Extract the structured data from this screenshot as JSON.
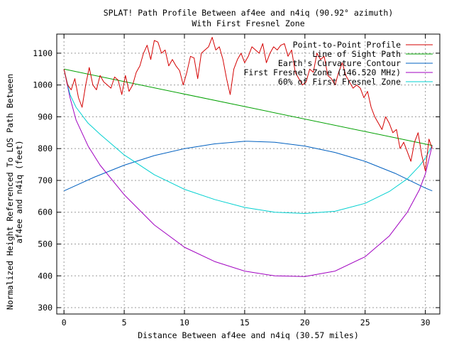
{
  "chart_data": {
    "type": "line",
    "title": "SPLAT! Path Profile Between af4ee and n4iq (90.92° azimuth)",
    "subtitle": "With First Fresnel Zone",
    "xlabel": "Distance Between af4ee and n4iq (30.57 miles)",
    "ylabel": "Normalized Height Referenced To LOS Path Between af4ee and n4iq (feet)",
    "ylabel_lines": [
      "Normalized Height Referenced To LOS Path Between",
      "af4ee and n4iq (feet)"
    ],
    "xlim": [
      -0.6,
      31.2
    ],
    "ylim": [
      280,
      1160
    ],
    "x_ticks": [
      0,
      5,
      10,
      15,
      20,
      25,
      30
    ],
    "y_ticks": [
      300,
      400,
      500,
      600,
      700,
      800,
      900,
      1000,
      1100
    ],
    "grid": true,
    "legend_position": "top-right",
    "colors": {
      "profile": "#d40000",
      "los": "#00a000",
      "curvature": "#0060c0",
      "fresnel": "#a000c0",
      "fresnel60": "#00d0d0",
      "grid": "#9a9a9a",
      "axis": "#000000"
    },
    "series": [
      {
        "name": "Point-to-Point Profile",
        "key": "profile",
        "x": [
          0,
          0.3,
          0.6,
          0.9,
          1.2,
          1.5,
          1.8,
          2.1,
          2.4,
          2.7,
          3.0,
          3.3,
          3.6,
          3.9,
          4.2,
          4.5,
          4.8,
          5.1,
          5.4,
          5.7,
          6.0,
          6.3,
          6.6,
          6.9,
          7.2,
          7.5,
          7.8,
          8.1,
          8.4,
          8.7,
          9.0,
          9.3,
          9.6,
          9.9,
          10.2,
          10.5,
          10.8,
          11.1,
          11.4,
          11.7,
          12.0,
          12.3,
          12.6,
          12.9,
          13.2,
          13.5,
          13.8,
          14.1,
          14.4,
          14.7,
          15.0,
          15.3,
          15.6,
          15.9,
          16.2,
          16.5,
          16.8,
          17.1,
          17.4,
          17.7,
          18.0,
          18.3,
          18.6,
          18.9,
          19.2,
          19.5,
          19.8,
          20.1,
          20.4,
          20.7,
          21.0,
          21.3,
          21.6,
          21.9,
          22.2,
          22.5,
          22.8,
          23.1,
          23.4,
          23.7,
          24.0,
          24.3,
          24.6,
          24.9,
          25.2,
          25.5,
          25.8,
          26.1,
          26.4,
          26.7,
          27.0,
          27.3,
          27.6,
          27.9,
          28.2,
          28.5,
          28.8,
          29.1,
          29.4,
          29.7,
          30.0,
          30.3,
          30.57
        ],
        "values": [
          1050,
          1000,
          985,
          1020,
          960,
          930,
          1000,
          1055,
          1000,
          985,
          1030,
          1010,
          1000,
          990,
          1025,
          1015,
          970,
          1030,
          980,
          1000,
          1040,
          1060,
          1100,
          1125,
          1080,
          1140,
          1135,
          1100,
          1110,
          1060,
          1080,
          1060,
          1045,
          1000,
          1040,
          1090,
          1085,
          1020,
          1100,
          1110,
          1120,
          1150,
          1110,
          1120,
          1080,
          1020,
          970,
          1050,
          1080,
          1100,
          1070,
          1090,
          1120,
          1110,
          1100,
          1130,
          1070,
          1100,
          1120,
          1110,
          1125,
          1130,
          1090,
          1110,
          1040,
          1020,
          1000,
          1010,
          1050,
          1040,
          1100,
          1080,
          1090,
          1030,
          1020,
          1000,
          1040,
          1070,
          1030,
          1010,
          990,
          1000,
          990,
          960,
          980,
          930,
          900,
          880,
          860,
          900,
          880,
          850,
          860,
          800,
          820,
          790,
          760,
          820,
          850,
          780,
          730,
          830,
          800
        ]
      },
      {
        "name": "Line of Sight Path",
        "key": "los",
        "x": [
          0,
          30.57
        ],
        "values": [
          1050,
          810
        ]
      },
      {
        "name": "Earth's Curvature Contour",
        "key": "curvature",
        "x": [
          0,
          2.5,
          5,
          7.5,
          10,
          12.5,
          15,
          15.285,
          17.5,
          20,
          22.5,
          25,
          27.5,
          30,
          30.57
        ],
        "values": [
          667,
          710,
          748,
          778,
          800,
          815,
          823,
          823,
          820,
          808,
          788,
          760,
          722,
          676,
          667
        ]
      },
      {
        "name": "First Fresnel Zone (146.520 MHz)",
        "key": "fresnel",
        "x": [
          0,
          0.5,
          1,
          2,
          3,
          5,
          7.5,
          10,
          12.5,
          15,
          17.5,
          20,
          22.5,
          25,
          27,
          28.5,
          29.5,
          30,
          30.57
        ],
        "values": [
          1050,
          960,
          890,
          808,
          748,
          655,
          560,
          490,
          445,
          415,
          400,
          398,
          415,
          460,
          525,
          600,
          670,
          720,
          810
        ]
      },
      {
        "name": "60% of First Fresnel Zone",
        "key": "fresnel60",
        "x": [
          0,
          0.5,
          1,
          2,
          3,
          5,
          7.5,
          10,
          12.5,
          15,
          17.5,
          20,
          22.5,
          25,
          27,
          28.5,
          29.5,
          30,
          30.57
        ],
        "values": [
          1050,
          970,
          930,
          880,
          845,
          780,
          718,
          672,
          640,
          615,
          600,
          596,
          603,
          628,
          665,
          705,
          745,
          770,
          810
        ]
      }
    ]
  }
}
